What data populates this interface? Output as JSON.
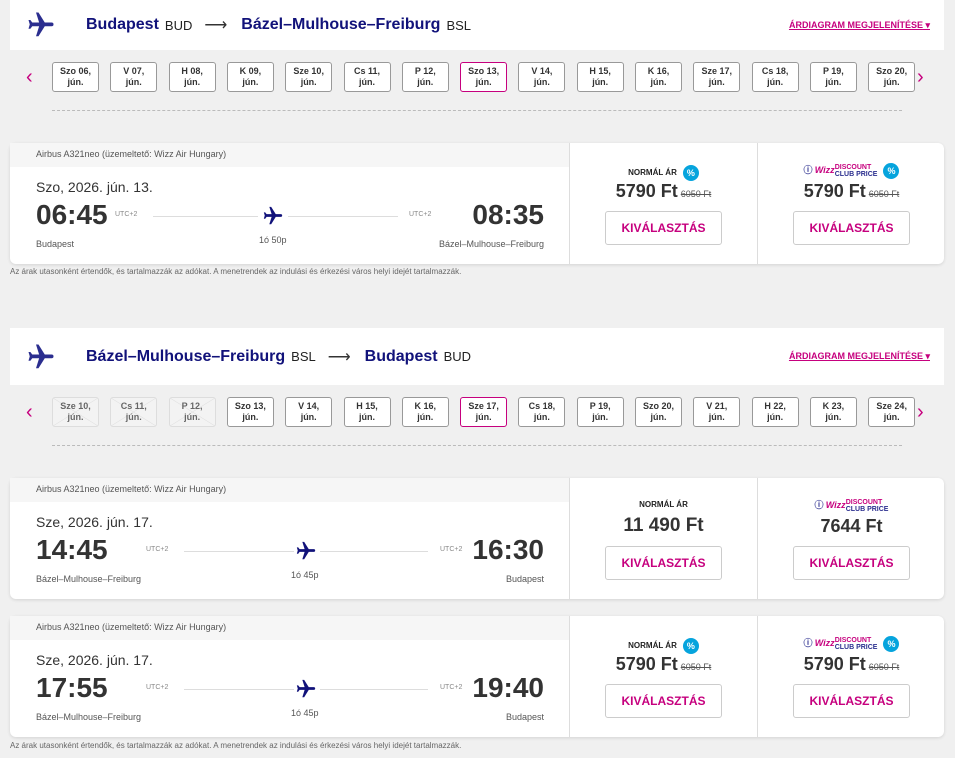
{
  "chart_link_label": "ÁRDIAGRAM MEGJELENÍTÉSE",
  "disclaimer": "Az árak utasonként értendők, és tartalmazzák az adókat. A menetrendek az indulási és érkezési város helyi idejét tartalmazzák.",
  "select_label": "KIVÁLASZTÁS",
  "normal_label": "NORMÁL ÁR",
  "club_label": {
    "brand": "Wizz",
    "line1": "DISCOUNT",
    "line2": "CLUB PRICE"
  },
  "colors": {
    "accent": "#c6007e",
    "brand": "#11127a",
    "badge": "#06a4dd"
  },
  "sections": [
    {
      "from": {
        "city": "Budapest",
        "code": "BUD"
      },
      "to": {
        "city": "Bázel–Mulhouse–Freiburg",
        "code": "BSL"
      },
      "dates": [
        {
          "label": "Szo 06,",
          "month": "jún."
        },
        {
          "label": "V 07,",
          "month": "jún."
        },
        {
          "label": "H 08,",
          "month": "jún."
        },
        {
          "label": "K 09,",
          "month": "jún."
        },
        {
          "label": "Sze 10,",
          "month": "jún."
        },
        {
          "label": "Cs 11,",
          "month": "jún."
        },
        {
          "label": "P 12,",
          "month": "jún."
        },
        {
          "label": "Szo 13,",
          "month": "jún.",
          "selected": true
        },
        {
          "label": "V 14,",
          "month": "jún."
        },
        {
          "label": "H 15,",
          "month": "jún."
        },
        {
          "label": "K 16,",
          "month": "jún."
        },
        {
          "label": "Sze 17,",
          "month": "jún."
        },
        {
          "label": "Cs 18,",
          "month": "jún."
        },
        {
          "label": "P 19,",
          "month": "jún."
        },
        {
          "label": "Szo 20,",
          "month": "jún."
        }
      ],
      "flights": [
        {
          "aircraft": "Airbus A321neo (üzemeltető: Wizz Air Hungary)",
          "date": "Szo, 2026. jún. 13.",
          "dep": "06:45",
          "arr": "08:35",
          "dep_utc": "UTC+2",
          "arr_utc": "UTC+2",
          "duration": "1ó 50p",
          "dep_place": "Budapest",
          "arr_place": "Bázel–Mulhouse–Freiburg",
          "normal_price": "5790 Ft",
          "normal_old": "6050 Ft",
          "normal_discount": true,
          "club_price": "5790 Ft",
          "club_old": "6050 Ft",
          "club_discount": true
        }
      ]
    },
    {
      "from": {
        "city": "Bázel–Mulhouse–Freiburg",
        "code": "BSL"
      },
      "to": {
        "city": "Budapest",
        "code": "BUD"
      },
      "dates": [
        {
          "label": "Sze 10,",
          "month": "jún.",
          "disabled": true
        },
        {
          "label": "Cs 11,",
          "month": "jún.",
          "disabled": true
        },
        {
          "label": "P 12,",
          "month": "jún.",
          "disabled": true
        },
        {
          "label": "Szo 13,",
          "month": "jún."
        },
        {
          "label": "V 14,",
          "month": "jún."
        },
        {
          "label": "H 15,",
          "month": "jún."
        },
        {
          "label": "K 16,",
          "month": "jún."
        },
        {
          "label": "Sze 17,",
          "month": "jún.",
          "selected": true
        },
        {
          "label": "Cs 18,",
          "month": "jún."
        },
        {
          "label": "P 19,",
          "month": "jún."
        },
        {
          "label": "Szo 20,",
          "month": "jún."
        },
        {
          "label": "V 21,",
          "month": "jún."
        },
        {
          "label": "H 22,",
          "month": "jún."
        },
        {
          "label": "K 23,",
          "month": "jún."
        },
        {
          "label": "Sze 24,",
          "month": "jún."
        }
      ],
      "flights": [
        {
          "aircraft": "Airbus A321neo (üzemeltető: Wizz Air Hungary)",
          "date": "Sze, 2026. jún. 17.",
          "dep": "14:45",
          "arr": "16:30",
          "dep_utc": "UTC+2",
          "arr_utc": "UTC+2",
          "duration": "1ó 45p",
          "dep_place": "Bázel–Mulhouse–Freiburg",
          "arr_place": "Budapest",
          "normal_price": "11 490 Ft",
          "normal_discount": false,
          "club_price": "7644 Ft",
          "club_discount": false
        },
        {
          "aircraft": "Airbus A321neo (üzemeltető: Wizz Air Hungary)",
          "date": "Sze, 2026. jún. 17.",
          "dep": "17:55",
          "arr": "19:40",
          "dep_utc": "UTC+2",
          "arr_utc": "UTC+2",
          "duration": "1ó 45p",
          "dep_place": "Bázel–Mulhouse–Freiburg",
          "arr_place": "Budapest",
          "normal_price": "5790 Ft",
          "normal_old": "6050 Ft",
          "normal_discount": true,
          "club_price": "5790 Ft",
          "club_old": "6050 Ft",
          "club_discount": true
        }
      ]
    }
  ]
}
